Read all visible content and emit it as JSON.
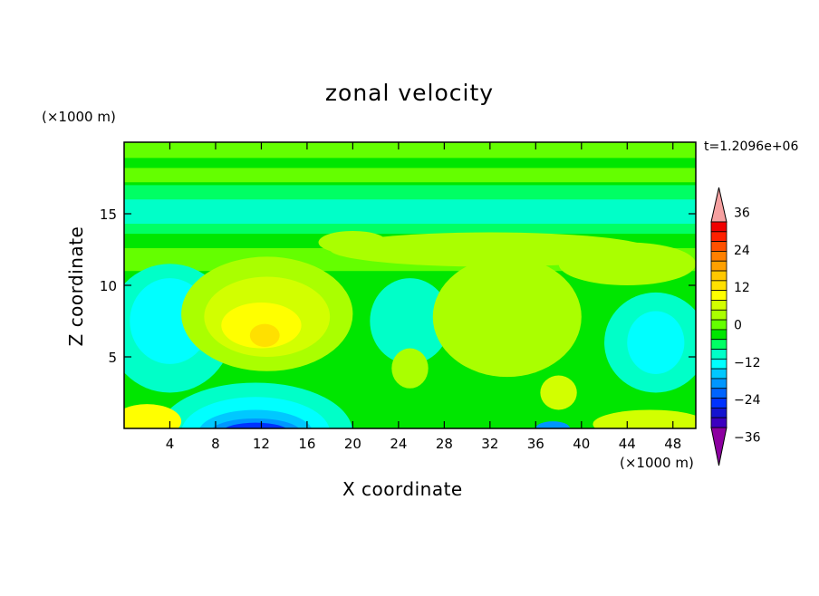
{
  "chart_data": {
    "type": "heatmap",
    "title": "zonal velocity",
    "xlabel": "X coordinate",
    "ylabel": "Z coordinate",
    "x_unit": "(×1000 m)",
    "y_unit": "(×1000 m)",
    "annotation": "t=1.2096e+06",
    "xlim": [
      0,
      50
    ],
    "ylim": [
      0,
      20
    ],
    "x_ticks": [
      4,
      8,
      12,
      16,
      20,
      24,
      28,
      32,
      36,
      40,
      44,
      48
    ],
    "y_ticks": [
      5,
      10,
      15
    ],
    "colorbar": {
      "levels": [
        -42,
        -39,
        -36,
        -33,
        -30,
        -27,
        -24,
        -21,
        -18,
        -15,
        -12,
        -9,
        -6,
        -3,
        0,
        3,
        6,
        9,
        12,
        15,
        18,
        21,
        24,
        27,
        30,
        33,
        36,
        39,
        42
      ],
      "tick_labels": [
        "36",
        "24",
        "12",
        "0",
        "−12",
        "−24",
        "−36"
      ],
      "tick_values": [
        36,
        24,
        12,
        0,
        -12,
        -24,
        -36
      ],
      "extend": "both",
      "colors": [
        "#8c00a0",
        "#3c00c0",
        "#1414d0",
        "#0032ff",
        "#0064ff",
        "#0096ff",
        "#00c8ff",
        "#00ffff",
        "#00ffc8",
        "#00ff64",
        "#00e600",
        "#64ff00",
        "#aaff00",
        "#d2ff00",
        "#ffff00",
        "#ffe000",
        "#ffc800",
        "#ffa000",
        "#ff8000",
        "#ff5000",
        "#ff2000",
        "#f00000",
        "#f5a0a0"
      ]
    }
  }
}
